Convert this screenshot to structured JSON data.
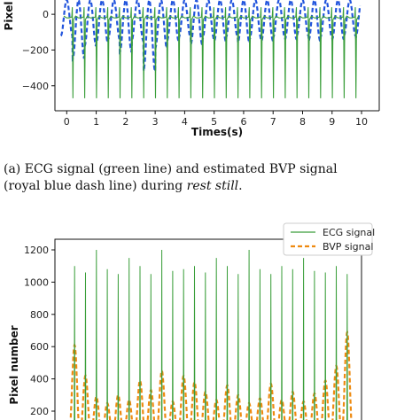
{
  "caption": {
    "line1": "(a) ECG signal (green line) and estimated BVP signal",
    "line2_prefix": "(royal blue dash line) during ",
    "line2_em": "rest still",
    "line2_suffix": "."
  },
  "chart_data": [
    {
      "type": "line",
      "title": "",
      "xlabel": "Times(s)",
      "ylabel": "Pixel",
      "xlim": [
        -0.4,
        10.6
      ],
      "ylim": [
        -540,
        80
      ],
      "x_ticks": [
        "0",
        "1",
        "2",
        "3",
        "4",
        "5",
        "6",
        "7",
        "8",
        "9",
        "10"
      ],
      "y_ticks": [
        "0",
        "−200",
        "−400"
      ],
      "grid": false,
      "legend": "none",
      "series": [
        {
          "name": "",
          "role": "ECG",
          "color": "#3a9e3a",
          "style": "solid",
          "baseline": -20,
          "r_peak": 40,
          "s_trough": -470,
          "beats_s": [
            -0.2,
            0.2,
            0.6,
            1.0,
            1.4,
            1.8,
            2.2,
            2.6,
            3.0,
            3.4,
            3.8,
            4.2,
            4.6,
            5.0,
            5.4,
            5.8,
            6.2,
            6.6,
            7.0,
            7.4,
            7.8,
            8.2,
            8.6,
            9.0,
            9.4,
            9.8
          ]
        },
        {
          "name": "",
          "role": "BVP",
          "color": "#2255dd",
          "style": "dash",
          "troughs": [
            -120,
            -250,
            -180,
            -160,
            -140,
            -210,
            -150,
            -320,
            -190,
            -150,
            -130,
            -170,
            -140,
            -150,
            -130,
            -160,
            -140,
            -150,
            -130,
            -140,
            -120,
            -150,
            -130,
            -140,
            -120,
            -130
          ],
          "peak": 80
        }
      ]
    },
    {
      "type": "line",
      "title": "",
      "xlabel": "",
      "ylabel": "Pixel number",
      "xlim": [
        0,
        10
      ],
      "ylim": [
        0,
        1300
      ],
      "y_ticks": [
        "200",
        "400",
        "600",
        "800",
        "1000",
        "1200"
      ],
      "grid": false,
      "legend": "top-right",
      "series": [
        {
          "name": "ECG signal",
          "color": "#3a9e3a",
          "style": "solid",
          "baseline": 70,
          "r_peaks": [
            1100,
            1060,
            1200,
            1080,
            1050,
            1150,
            1100,
            1050,
            1200,
            1070,
            1080,
            1100,
            1060,
            1150,
            1100,
            1050,
            1200,
            1080,
            1050,
            1100,
            1080,
            1150,
            1070,
            1060,
            1100,
            1050
          ]
        },
        {
          "name": "BVP signal",
          "color": "#ee8a10",
          "style": "dash",
          "peaks": [
            610,
            420,
            290,
            250,
            300,
            270,
            390,
            330,
            450,
            260,
            420,
            380,
            320,
            270,
            360,
            300,
            250,
            280,
            370,
            270,
            320,
            260,
            310,
            390,
            480,
            690
          ],
          "trough": 40
        }
      ]
    }
  ]
}
